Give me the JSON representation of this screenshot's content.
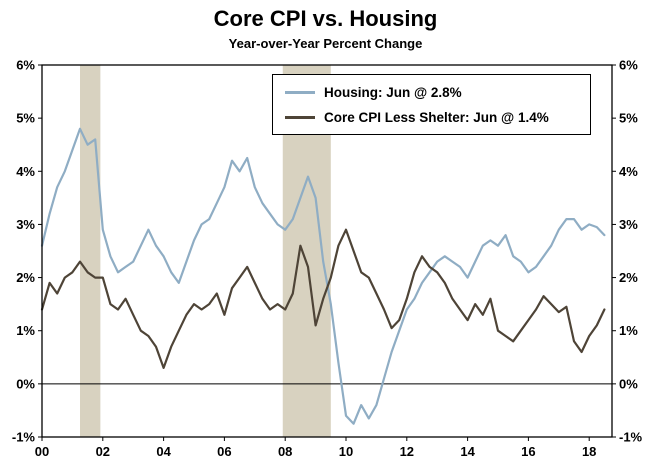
{
  "chart": {
    "title": "Core CPI vs. Housing",
    "subtitle": "Year-over-Year Percent Change",
    "legend": [
      {
        "label": "Housing: Jun @ 2.8%",
        "color": "#8fadc4"
      },
      {
        "label": "Core CPI Less Shelter: Jun @ 1.4%",
        "color": "#4e4437"
      }
    ]
  },
  "chart_data": {
    "type": "line",
    "title": "Core CPI vs. Housing",
    "subtitle": "Year-over-Year Percent Change",
    "xlabel": "",
    "ylabel": "Year-over-Year Percent Change",
    "xlim": [
      2000,
      2018.75
    ],
    "ylim": [
      -1,
      6
    ],
    "grid": false,
    "legend_position": "top-center",
    "band_color": "#d8d2c0",
    "y_ticks": [
      6,
      5,
      4,
      3,
      2,
      1,
      0,
      -1
    ],
    "y_tick_labels": [
      "6%",
      "5%",
      "4%",
      "3%",
      "2%",
      "1%",
      "0%",
      "-1%"
    ],
    "x_ticks": [
      2000,
      2002,
      2004,
      2006,
      2008,
      2010,
      2012,
      2014,
      2016,
      2018
    ],
    "x_tick_labels": [
      "00",
      "02",
      "04",
      "06",
      "08",
      "10",
      "12",
      "14",
      "16",
      "18"
    ],
    "recession_bands": [
      [
        2001.25,
        2001.92
      ],
      [
        2007.92,
        2009.5
      ]
    ],
    "x": [
      2000,
      2000.25,
      2000.5,
      2000.75,
      2001,
      2001.25,
      2001.5,
      2001.75,
      2002,
      2002.25,
      2002.5,
      2002.75,
      2003,
      2003.25,
      2003.5,
      2003.75,
      2004,
      2004.25,
      2004.5,
      2004.75,
      2005,
      2005.25,
      2005.5,
      2005.75,
      2006,
      2006.25,
      2006.5,
      2006.75,
      2007,
      2007.25,
      2007.5,
      2007.75,
      2008,
      2008.25,
      2008.5,
      2008.75,
      2009,
      2009.25,
      2009.5,
      2009.75,
      2010,
      2010.25,
      2010.5,
      2010.75,
      2011,
      2011.25,
      2011.5,
      2011.75,
      2012,
      2012.25,
      2012.5,
      2012.75,
      2013,
      2013.25,
      2013.5,
      2013.75,
      2014,
      2014.25,
      2014.5,
      2014.75,
      2015,
      2015.25,
      2015.5,
      2015.75,
      2016,
      2016.25,
      2016.5,
      2016.75,
      2017,
      2017.25,
      2017.5,
      2017.75,
      2018,
      2018.25,
      2018.5
    ],
    "series": [
      {
        "name": "Housing: Jun @ 2.8%",
        "color": "#8fadc4",
        "values": [
          2.6,
          3.2,
          3.7,
          4.0,
          4.4,
          4.8,
          4.5,
          4.6,
          2.9,
          2.4,
          2.1,
          2.2,
          2.3,
          2.6,
          2.9,
          2.6,
          2.4,
          2.1,
          1.9,
          2.3,
          2.7,
          3.0,
          3.1,
          3.4,
          3.7,
          4.2,
          4.0,
          4.25,
          3.7,
          3.4,
          3.2,
          3.0,
          2.9,
          3.1,
          3.5,
          3.9,
          3.5,
          2.3,
          1.5,
          0.4,
          -0.6,
          -0.75,
          -0.4,
          -0.65,
          -0.4,
          0.1,
          0.6,
          1.0,
          1.4,
          1.6,
          1.9,
          2.1,
          2.3,
          2.4,
          2.3,
          2.2,
          2.0,
          2.3,
          2.6,
          2.7,
          2.6,
          2.8,
          2.4,
          2.3,
          2.1,
          2.2,
          2.4,
          2.6,
          2.9,
          3.1,
          3.1,
          2.9,
          3.0,
          2.95,
          2.8
        ]
      },
      {
        "name": "Core CPI Less Shelter: Jun @ 1.4%",
        "color": "#4e4437",
        "values": [
          1.4,
          1.9,
          1.7,
          2.0,
          2.1,
          2.3,
          2.1,
          2.0,
          2.0,
          1.5,
          1.4,
          1.6,
          1.3,
          1.0,
          0.9,
          0.7,
          0.3,
          0.7,
          1.0,
          1.3,
          1.5,
          1.4,
          1.5,
          1.7,
          1.3,
          1.8,
          2.0,
          2.2,
          1.9,
          1.6,
          1.4,
          1.5,
          1.4,
          1.7,
          2.6,
          2.2,
          1.1,
          1.6,
          2.0,
          2.6,
          2.9,
          2.5,
          2.1,
          2.0,
          1.7,
          1.4,
          1.05,
          1.2,
          1.6,
          2.1,
          2.4,
          2.2,
          2.1,
          1.9,
          1.6,
          1.4,
          1.2,
          1.5,
          1.3,
          1.6,
          1.0,
          0.9,
          0.8,
          1.0,
          1.2,
          1.4,
          1.65,
          1.5,
          1.35,
          1.45,
          0.8,
          0.6,
          0.9,
          1.1,
          1.4
        ]
      }
    ]
  }
}
